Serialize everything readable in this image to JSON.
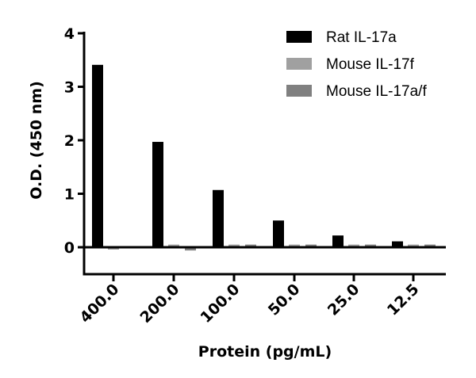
{
  "chart_data": {
    "type": "bar",
    "title": "",
    "xlabel": "Protein (pg/mL)",
    "ylabel": "O.D. (450 nm)",
    "ylim": [
      -0.5,
      4
    ],
    "yticks": [
      0,
      1,
      2,
      3,
      4
    ],
    "grid": false,
    "legend_position": "top-right",
    "categories": [
      "400.0",
      "200.0",
      "100.0",
      "50.0",
      "25.0",
      "12.5"
    ],
    "series": [
      {
        "name": "Rat IL-17a",
        "color": "#000000",
        "values": [
          3.41,
          1.97,
          1.07,
          0.5,
          0.22,
          0.11
        ]
      },
      {
        "name": "Mouse IL-17f",
        "color": "#a0a0a0",
        "values": [
          -0.01,
          0.05,
          0.05,
          0.05,
          0.05,
          0.05
        ]
      },
      {
        "name": "Mouse IL-17a/f",
        "color": "#808080",
        "values": [
          0.02,
          -0.06,
          0.05,
          0.05,
          0.05,
          0.05
        ]
      }
    ]
  }
}
